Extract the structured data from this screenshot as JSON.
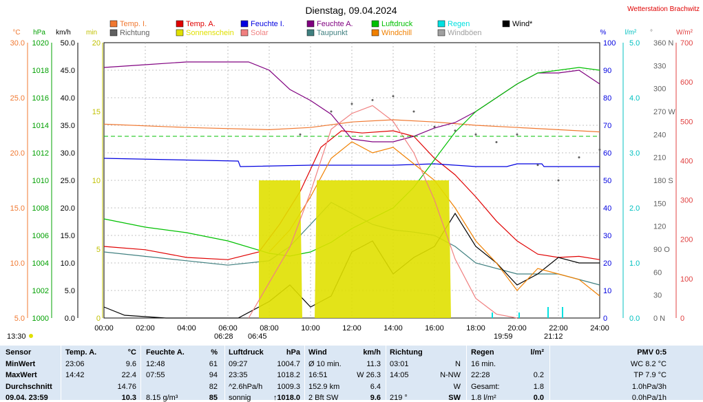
{
  "title": "Dienstag, 09.04.2024",
  "station": "Wetterstation Brachwitz",
  "legend": [
    {
      "label": "Temp. I.",
      "color": "#f07830"
    },
    {
      "label": "Temp. A.",
      "color": "#e00000"
    },
    {
      "label": "Feuchte I.",
      "color": "#0000e0"
    },
    {
      "label": "Feuchte A.",
      "color": "#800080"
    },
    {
      "label": "Luftdruck",
      "color": "#00c000"
    },
    {
      "label": "Regen",
      "color": "#00e0e0"
    },
    {
      "label": "Wind*",
      "color": "#000000"
    },
    {
      "label": "Richtung",
      "color": "#606060"
    },
    {
      "label": "Sonnenschein",
      "color": "#e0e000"
    },
    {
      "label": "Solar",
      "color": "#f08080"
    },
    {
      "label": "Taupunkt",
      "color": "#408080"
    },
    {
      "label": "Windchill",
      "color": "#f08000"
    },
    {
      "label": "Windböen",
      "color": "#a0a0a0"
    }
  ],
  "axis_units": {
    "temp": "°C",
    "hpa": "hPa",
    "kmh": "km/h",
    "min": "min",
    "pct": "%",
    "rain": "l/m²",
    "deg": "°",
    "solar": "W/m²"
  },
  "axes": {
    "temp": [
      "30.0",
      "25.0",
      "20.0",
      "15.0",
      "10.0",
      "5.0"
    ],
    "hpa": [
      "1020",
      "1018",
      "1016",
      "1014",
      "1012",
      "1010",
      "1008",
      "1006",
      "1004",
      "1002",
      "1000"
    ],
    "kmh": [
      "50.0",
      "45.0",
      "40.0",
      "35.0",
      "30.0",
      "25.0",
      "20.0",
      "15.0",
      "10.0",
      "5.0",
      "0.0"
    ],
    "min": [
      "20",
      "15",
      "10",
      "5",
      "0"
    ],
    "pct": [
      "100",
      "90",
      "80",
      "70",
      "60",
      "50",
      "40",
      "30",
      "20",
      "10",
      "0"
    ],
    "rain": [
      "5.0",
      "4.0",
      "3.0",
      "2.0",
      "1.0",
      "0.0"
    ],
    "deg": [
      "360 N",
      "330",
      "300",
      "270 W",
      "240",
      "210",
      "180 S",
      "150",
      "120",
      "90 O",
      "60",
      "30",
      "0   N"
    ],
    "solar": [
      "700",
      "600",
      "500",
      "400",
      "300",
      "200",
      "100",
      "0"
    ]
  },
  "time_labels": [
    "00:00",
    "02:00",
    "04:00",
    "06:00",
    "08:00",
    "10:00",
    "12:00",
    "14:00",
    "16:00",
    "18:00",
    "20:00",
    "22:00",
    "24:00"
  ],
  "sun_labels": {
    "left_time": "13:30",
    "sunrise": "06:28",
    "sunrise2": "06:45",
    "sunset": "19:59",
    "sunset2": "21:12"
  },
  "chart_data": {
    "type": "line",
    "x_unit": "hour of day",
    "xlim": [
      0,
      24
    ],
    "series": [
      {
        "name": "Temp. I.",
        "unit": "°C",
        "values": [
          [
            0,
            22.6
          ],
          [
            4,
            22.3
          ],
          [
            8,
            22.1
          ],
          [
            10,
            22.3
          ],
          [
            12,
            22.8
          ],
          [
            14,
            23.0
          ],
          [
            16,
            22.8
          ],
          [
            18,
            22.5
          ],
          [
            20,
            22.3
          ],
          [
            22,
            22.1
          ],
          [
            24,
            21.9
          ]
        ]
      },
      {
        "name": "Temp. A.",
        "unit": "°C",
        "values": [
          [
            0,
            11.5
          ],
          [
            2,
            11.2
          ],
          [
            4,
            10.5
          ],
          [
            6,
            10.3
          ],
          [
            7.5,
            11.0
          ],
          [
            8.5,
            13.5
          ],
          [
            9.5,
            16.5
          ],
          [
            10.5,
            20.5
          ],
          [
            11.5,
            22.0
          ],
          [
            12.5,
            21.8
          ],
          [
            14,
            22.0
          ],
          [
            15,
            21.5
          ],
          [
            16,
            19.5
          ],
          [
            17,
            18.0
          ],
          [
            18,
            16.0
          ],
          [
            19,
            13.8
          ],
          [
            20,
            12.0
          ],
          [
            21,
            10.8
          ],
          [
            22,
            10.5
          ],
          [
            23,
            10.6
          ],
          [
            24,
            10.3
          ]
        ]
      },
      {
        "name": "Feuchte I.",
        "unit": "%",
        "values": [
          [
            0,
            58
          ],
          [
            6.5,
            57
          ],
          [
            6.6,
            55
          ],
          [
            10,
            55.5
          ],
          [
            14,
            55.5
          ],
          [
            16,
            56
          ],
          [
            18,
            55
          ],
          [
            19.5,
            55
          ],
          [
            20,
            56
          ],
          [
            21.2,
            56
          ],
          [
            21.3,
            55
          ],
          [
            24,
            55
          ]
        ]
      },
      {
        "name": "Feuchte A.",
        "unit": "%",
        "values": [
          [
            0,
            91
          ],
          [
            2,
            92
          ],
          [
            4,
            93
          ],
          [
            7,
            93
          ],
          [
            8,
            90
          ],
          [
            9,
            83
          ],
          [
            10,
            79
          ],
          [
            11,
            74
          ],
          [
            12,
            65
          ],
          [
            13,
            64
          ],
          [
            14,
            64
          ],
          [
            15,
            66
          ],
          [
            16,
            69
          ],
          [
            17,
            71
          ],
          [
            18,
            75
          ],
          [
            19,
            80
          ],
          [
            20,
            85
          ],
          [
            21,
            89
          ],
          [
            22,
            89
          ],
          [
            23,
            90
          ],
          [
            24,
            85
          ]
        ]
      },
      {
        "name": "Luftdruck",
        "unit": "hPa",
        "values": [
          [
            0,
            1007.2
          ],
          [
            2,
            1006.6
          ],
          [
            4,
            1006.2
          ],
          [
            6,
            1005.6
          ],
          [
            8,
            1004.7
          ],
          [
            9,
            1004.5
          ],
          [
            10,
            1004.8
          ],
          [
            11,
            1005.5
          ],
          [
            12,
            1006.5
          ],
          [
            14,
            1008.0
          ],
          [
            15,
            1009.5
          ],
          [
            16,
            1011.5
          ],
          [
            17,
            1013.5
          ],
          [
            18,
            1015.0
          ],
          [
            19,
            1016.0
          ],
          [
            20,
            1017.0
          ],
          [
            21,
            1017.8
          ],
          [
            22,
            1018.0
          ],
          [
            23,
            1018.2
          ],
          [
            24,
            1018.0
          ]
        ]
      },
      {
        "name": "Taupunkt",
        "unit": "°C",
        "values": [
          [
            0,
            11.0
          ],
          [
            4,
            10.2
          ],
          [
            6,
            9.8
          ],
          [
            8,
            10.2
          ],
          [
            9,
            11.5
          ],
          [
            10,
            13.5
          ],
          [
            11,
            15.5
          ],
          [
            12,
            14.5
          ],
          [
            13,
            13.5
          ],
          [
            14,
            13.0
          ],
          [
            15,
            12.8
          ],
          [
            16,
            12.5
          ],
          [
            17,
            11.5
          ],
          [
            18,
            10.0
          ],
          [
            20,
            9.0
          ],
          [
            22,
            9.0
          ],
          [
            24,
            8.0
          ]
        ]
      },
      {
        "name": "Wind*",
        "unit": "km/h",
        "values": [
          [
            0,
            2
          ],
          [
            1,
            0.5
          ],
          [
            3,
            0
          ],
          [
            6.5,
            0
          ],
          [
            8,
            3
          ],
          [
            9,
            6
          ],
          [
            10,
            2
          ],
          [
            11,
            4
          ],
          [
            12,
            12
          ],
          [
            13,
            14
          ],
          [
            14,
            8
          ],
          [
            15,
            11
          ],
          [
            16,
            13
          ],
          [
            17,
            19
          ],
          [
            18,
            13
          ],
          [
            19,
            10
          ],
          [
            20,
            6
          ],
          [
            21,
            8
          ],
          [
            22,
            11
          ],
          [
            23,
            10
          ],
          [
            24,
            10
          ]
        ]
      },
      {
        "name": "Windchill",
        "unit": "°C",
        "values": [
          [
            8,
            11.0
          ],
          [
            9,
            13.0
          ],
          [
            10,
            16.0
          ],
          [
            11,
            19.5
          ],
          [
            12,
            21.0
          ],
          [
            13,
            20.0
          ],
          [
            14,
            20.5
          ],
          [
            15,
            19.0
          ],
          [
            16,
            17.5
          ],
          [
            17,
            15.0
          ],
          [
            18,
            12.0
          ],
          [
            19,
            10.0
          ],
          [
            20,
            7.5
          ],
          [
            21,
            9.5
          ],
          [
            22,
            9.0
          ],
          [
            23,
            8.5
          ],
          [
            24,
            7.0
          ]
        ]
      },
      {
        "name": "Sonnenschein",
        "unit": "min",
        "values": [
          [
            7.5,
            10
          ],
          [
            9.5,
            10
          ],
          [
            9.6,
            0
          ],
          [
            10.2,
            0
          ],
          [
            10.3,
            10
          ],
          [
            16.7,
            10
          ],
          [
            16.8,
            0
          ]
        ]
      },
      {
        "name": "Solar",
        "unit": "W/m²",
        "values": [
          [
            7,
            0
          ],
          [
            9,
            180
          ],
          [
            10,
            320
          ],
          [
            11,
            480
          ],
          [
            12,
            520
          ],
          [
            13,
            540
          ],
          [
            14,
            500
          ],
          [
            15,
            420
          ],
          [
            16,
            300
          ],
          [
            17,
            150
          ],
          [
            18,
            50
          ],
          [
            19,
            10
          ],
          [
            20,
            0
          ]
        ]
      },
      {
        "name": "Regen",
        "unit": "l/m²",
        "values": [
          [
            18.8,
            0.1
          ],
          [
            20.1,
            0.1
          ],
          [
            21.5,
            0.2
          ],
          [
            22.2,
            0.2
          ]
        ]
      },
      {
        "name": "Richtung",
        "unit": "°",
        "values": [
          [
            9.5,
            240
          ],
          [
            11,
            270
          ],
          [
            12,
            280
          ],
          [
            13,
            285
          ],
          [
            14,
            290
          ],
          [
            15,
            270
          ],
          [
            16,
            250
          ],
          [
            17,
            245
          ],
          [
            18,
            240
          ],
          [
            19,
            230
          ],
          [
            20,
            240
          ],
          [
            21,
            200
          ],
          [
            22,
            180
          ],
          [
            23,
            210
          ],
          [
            24,
            220
          ]
        ]
      }
    ]
  },
  "table": {
    "headers": [
      "Sensor",
      "Temp. A.",
      "°C",
      "Feuchte A.",
      "%",
      "Luftdruck",
      "hPa",
      "Wind",
      "km/h",
      "Richtung",
      "",
      "Regen",
      "l/m²",
      "PMV 0:5"
    ],
    "rows": [
      [
        "MinWert",
        "23:06",
        "9.6",
        "12:48",
        "61",
        "09:27",
        "1004.7",
        "Ø 10 min.",
        "11.3",
        "03:01",
        "N",
        "16 min.",
        "",
        "WC 8.2 °C"
      ],
      [
        "MaxWert",
        "14:42",
        "22.4",
        "07:55",
        "94",
        "23:35",
        "1018.2",
        "16:51",
        "W 26.3",
        "14:05",
        "N-NW",
        "22:28",
        "0.2",
        "TP 7.9 °C"
      ],
      [
        "Durchschnitt",
        "",
        "14.76",
        "",
        "82",
        "^2.6hPa/h",
        "1009.3",
        "152.9 km",
        "6.4",
        "",
        "W",
        "Gesamt:",
        "1.8",
        "1.0hPa/3h"
      ],
      [
        "09.04. 23:59",
        "",
        "10.3",
        "8.15 g/m³",
        "85",
        "sonnig",
        "↑1018.0",
        "2 Bft SW",
        "9.6",
        "219 °",
        "SW",
        "1.8 l/m²",
        "0.0",
        "0.0hPa/1h"
      ]
    ]
  }
}
